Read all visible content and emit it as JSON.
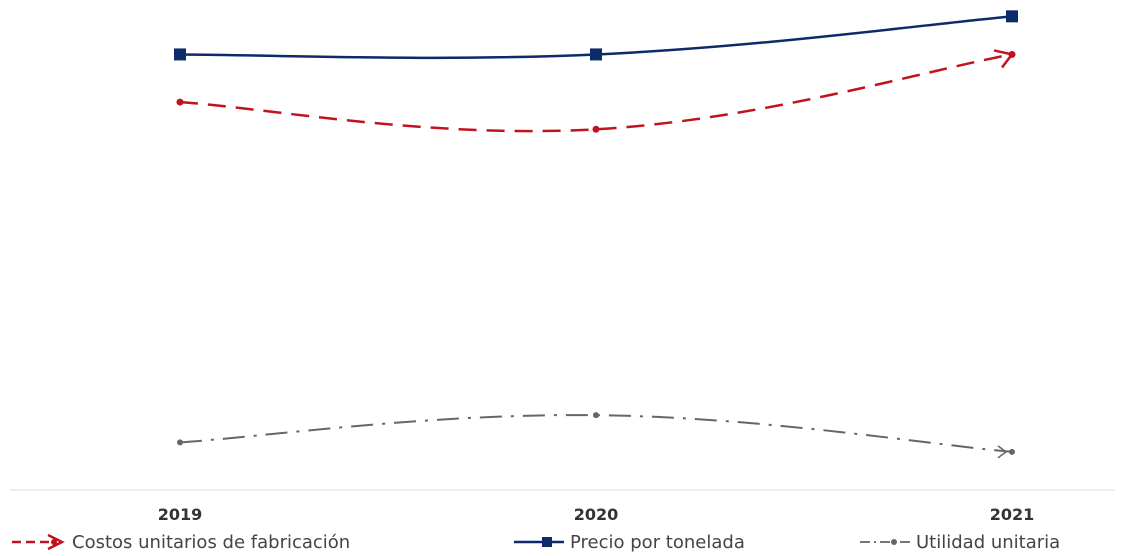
{
  "chart_data": {
    "type": "line",
    "categories": [
      "2019",
      "2020",
      "2021"
    ],
    "series": [
      {
        "name": "Costos unitarios de fabricación",
        "values": [
          2.85,
          2.65,
          3.2
        ],
        "color": "#c1121f",
        "style": "dashed",
        "marker": "dot-arrow"
      },
      {
        "name": "Precio por tonelada",
        "values": [
          3.2,
          3.2,
          3.48
        ],
        "color": "#0d2a6b",
        "style": "solid",
        "marker": "square"
      },
      {
        "name": "Utilidad unitaria",
        "values": [
          0.35,
          0.55,
          0.28
        ],
        "color": "#666666",
        "style": "dash-dot",
        "marker": "dot"
      }
    ],
    "title": "",
    "xlabel": "",
    "ylabel": "",
    "ylim": [
      0,
      3.6
    ],
    "grid": false,
    "legend": "bottom"
  }
}
